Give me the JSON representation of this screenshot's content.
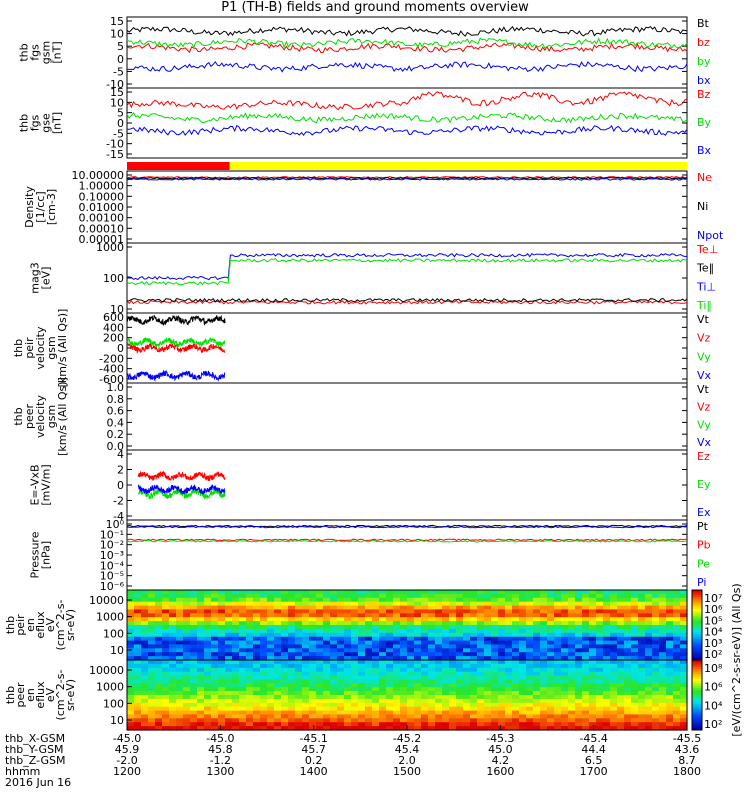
{
  "title": "P1 (TH-B) fields and ground moments overview",
  "date_label": "2016 Jun 16",
  "colors": {
    "black": "#000000",
    "red": "#ff0000",
    "green": "#00e000",
    "blue": "#0000ff",
    "yellow": "#ffff00"
  },
  "chart_data": {
    "type": "line",
    "x_range": [
      1200,
      1800
    ],
    "x_ticks": {
      "labels": [
        "thb_X-GSM",
        "thb_Y-GSM",
        "thb_Z-GSM",
        "hhmm"
      ],
      "rows": [
        [
          "-45.0",
          "-45.0",
          "-45.1",
          "-45.2",
          "-45.3",
          "-45.4",
          "-45.5"
        ],
        [
          "45.9",
          "45.8",
          "45.7",
          "45.4",
          "45.0",
          "44.4",
          "43.6"
        ],
        [
          "-2.0",
          "-1.2",
          "0.2",
          "2.0",
          "4.2",
          "6.5",
          "8.7"
        ],
        [
          "1200",
          "1300",
          "1400",
          "1500",
          "1600",
          "1700",
          "1800"
        ]
      ]
    },
    "mode_bar": [
      {
        "from": 1200,
        "to": 1310,
        "color": "red"
      },
      {
        "from": 1310,
        "to": 1800,
        "color": "yellow"
      }
    ],
    "panels": [
      {
        "ylabel": [
          "thb",
          "fgs",
          "gsm",
          "[nT]"
        ],
        "ylim": [
          -15,
          15
        ],
        "log": false,
        "yticks": [
          "15",
          "10",
          "5",
          "0",
          "-5",
          "-10"
        ],
        "series": [
          {
            "name": "Bt",
            "color": "black",
            "level": 9
          },
          {
            "name": "bz",
            "color": "red",
            "level": 2
          },
          {
            "name": "by",
            "color": "green",
            "level": 4
          },
          {
            "name": "bx",
            "color": "blue",
            "level": -6
          }
        ]
      },
      {
        "ylabel": [
          "thb",
          "fgs",
          "gse",
          "[nT]"
        ],
        "ylim": [
          -18,
          15
        ],
        "log": false,
        "yticks": [
          "15",
          "10",
          "5",
          "0",
          "-5",
          "-10",
          "-15"
        ],
        "series": [
          {
            "name": "Bz",
            "color": "red",
            "level": 7
          },
          {
            "name": "By",
            "color": "green",
            "level": 1
          },
          {
            "name": "Bx",
            "color": "blue",
            "level": -5
          }
        ]
      },
      {
        "ylabel": [
          "Density",
          "[1/cc]",
          "[cm-3]"
        ],
        "ylim": [
          1e-05,
          10
        ],
        "log": true,
        "yticks": [
          "10.00000",
          "1.00000",
          "0.10000",
          "0.01000",
          "0.00100",
          "0.00010",
          "0.00001"
        ],
        "series": [
          {
            "name": "Ne",
            "color": "red",
            "level": 3
          },
          {
            "name": "Ni",
            "color": "black",
            "level": 2.5
          },
          {
            "name": "Npot",
            "color": "blue",
            "level": 2
          }
        ]
      },
      {
        "ylabel": [
          "mag3",
          "[eV]"
        ],
        "ylim": [
          10,
          4000
        ],
        "log": true,
        "yticks": [
          "1000",
          "100",
          "10"
        ],
        "series": [
          {
            "name": "Te⊥",
            "color": "red",
            "level": 25
          },
          {
            "name": "Te‖",
            "color": "black",
            "level": 30
          },
          {
            "name": "Ti⊥",
            "color": "blue",
            "level": 1400
          },
          {
            "name": "Ti‖",
            "color": "green",
            "level": 900
          }
        ]
      },
      {
        "ylabel": [
          "thb",
          "peir",
          "velocity",
          "gsm",
          "[km/s (All Qs)]"
        ],
        "ylim": [
          -600,
          600
        ],
        "log": false,
        "yticks": [
          "600",
          "400",
          "200",
          "0",
          "-200",
          "-400",
          "-600"
        ],
        "series": [
          {
            "name": "Vt",
            "color": "black",
            "level": 480
          },
          {
            "name": "Vz",
            "color": "red",
            "level": 0
          },
          {
            "name": "Vy",
            "color": "green",
            "level": 100
          },
          {
            "name": "Vx",
            "color": "blue",
            "level": -470
          }
        ]
      },
      {
        "ylabel": [
          "thb",
          "peer",
          "velocity",
          "gsm",
          "[km/s (All Qs)]"
        ],
        "ylim": [
          0,
          1
        ],
        "log": false,
        "yticks": [
          "1.0",
          "0.8",
          "0.6",
          "0.4",
          "0.2",
          "0.0"
        ],
        "series": [
          {
            "name": "Vt",
            "color": "black"
          },
          {
            "name": "Vz",
            "color": "red"
          },
          {
            "name": "Vy",
            "color": "green"
          },
          {
            "name": "Vx",
            "color": "blue"
          }
        ]
      },
      {
        "ylabel": [
          "E=-VxB",
          "[mV/m]"
        ],
        "ylim": [
          -4,
          4
        ],
        "log": false,
        "yticks": [
          "4",
          "2",
          "0",
          "-2",
          "-4"
        ],
        "series": [
          {
            "name": "Ez",
            "color": "red",
            "level": 1
          },
          {
            "name": "Ey",
            "color": "green",
            "level": -1
          },
          {
            "name": "Ex",
            "color": "blue",
            "level": -0.5
          }
        ]
      },
      {
        "ylabel": [
          "Pressure",
          "[nPa]"
        ],
        "ylim": [
          1e-06,
          1
        ],
        "log": true,
        "yticks": [
          "10⁰",
          "10⁻¹",
          "10⁻²",
          "10⁻³",
          "10⁻⁴",
          "10⁻⁵",
          "10⁻⁶"
        ],
        "series": [
          {
            "name": "Pt",
            "color": "black",
            "level": 0.3
          },
          {
            "name": "Pb",
            "color": "red",
            "level": 0.02
          },
          {
            "name": "Pe",
            "color": "green",
            "level": 0.015
          },
          {
            "name": "Pi",
            "color": "blue",
            "level": 0.25
          }
        ]
      }
    ],
    "spectrograms": [
      {
        "ylabel": [
          "thb",
          "peir",
          "en",
          "eflux",
          "eV",
          "(cm^2-s-",
          "sr-eV)"
        ],
        "ylim": [
          5,
          20000
        ],
        "yticks": [
          "10000",
          "1000",
          "100",
          "10"
        ],
        "cbar_ticks": [
          "10⁷",
          "10⁶",
          "10⁵",
          "10⁴",
          "10³",
          "10²"
        ]
      },
      {
        "ylabel": [
          "thb",
          "peer",
          "en",
          "eflux",
          "eV",
          "(cm^2-s-",
          "sr-eV)"
        ],
        "ylim": [
          5,
          20000
        ],
        "yticks": [
          "10000",
          "1000",
          "100",
          "10"
        ],
        "cbar_ticks": [
          "10⁸",
          "10⁶",
          "10⁴",
          "10²"
        ]
      }
    ],
    "colorbar_label": "[eV/(cm^2-s-sr-eV)] (All Qs)"
  }
}
